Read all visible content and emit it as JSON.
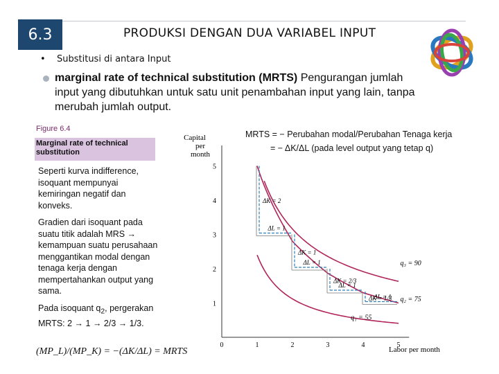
{
  "header": {
    "section_number": "6.3",
    "title": "PRODUKSI DENGAN DUA VARIABEL INPUT"
  },
  "bullets": {
    "first_marker": "•",
    "first": "Substitusi di antara Input",
    "second_bold": "marginal rate of technical substitution (MRTS)",
    "second_rest": " Pengurangan jumlah input yang dibutuhkan untuk satu unit penambahan input yang lain, tanpa merubah jumlah output."
  },
  "figure": {
    "label": "Figure 6.4",
    "caption": "Marginal rate of technical substitution"
  },
  "paragraphs": {
    "p1": "Seperti kurva indifference, isoquant mempunyai kemiringan negatif dan konveks.",
    "p2": "Gradien dari isoquant pada suatu titik adalah MRS → kemampuan suatu perusahaan menggantikan modal dengan tenaga kerja dengan mempertahankan output yang sama.",
    "p3_a": "Pada isoquant q",
    "p3_sub": "2",
    "p3_b": ", pergerakan MRTS: 2 → 1 → 2/3 → 1/3."
  },
  "formula": "(MP_L)/(MP_K) = −(ΔK/ΔL) = MRTS",
  "mrts_def": {
    "line1": "MRTS = − Perubahan modal/Perubahan Tenaga kerja",
    "line2": "= − ΔK/ΔL (pada level output yang tetap q)"
  },
  "chart_data": {
    "type": "line",
    "ylabel": "Capital per month",
    "xlabel": "Labor per month",
    "xlim": [
      0,
      5
    ],
    "ylim": [
      0,
      5
    ],
    "x_ticks": [
      "0",
      "1",
      "2",
      "3",
      "4",
      "5"
    ],
    "y_ticks": [
      "1",
      "2",
      "3",
      "4",
      "5"
    ],
    "series": [
      {
        "name": "q1 = 55",
        "points": [
          [
            1.0,
            2.4
          ],
          [
            1.5,
            1.6
          ],
          [
            2.0,
            1.2
          ],
          [
            3.0,
            0.8
          ],
          [
            4.0,
            0.6
          ],
          [
            5.0,
            0.48
          ]
        ]
      },
      {
        "name": "q2 = 75",
        "points": [
          [
            0.55,
            4.9
          ],
          [
            1.0,
            5.0
          ],
          [
            1.0,
            4.8
          ]
        ]
      },
      {
        "name": "q3 = 90",
        "points": [
          [
            1.0,
            5.0
          ],
          [
            2.0,
            3.0
          ],
          [
            3.0,
            2.0
          ],
          [
            4.0,
            1.667
          ],
          [
            5.0,
            1.333
          ]
        ]
      }
    ],
    "isoquant_q2": {
      "name": "q2 = 75",
      "points": [
        [
          1,
          5
        ],
        [
          2,
          3
        ],
        [
          3,
          2
        ],
        [
          4,
          1.333
        ],
        [
          5,
          1.0
        ]
      ]
    },
    "steps": [
      {
        "dK": "ΔK = 2",
        "dL": "ΔL = 1"
      },
      {
        "dK": "ΔK = 1",
        "dL": "ΔL = 1"
      },
      {
        "dK": "ΔK = 2/3",
        "dL": "ΔL = 1"
      },
      {
        "dK": "ΔK = 1/3",
        "dL": "ΔL = 1"
      }
    ],
    "curve_labels": {
      "q1": "q₁ = 55",
      "q2": "q₂ = 75",
      "q3": "q₃ = 90"
    },
    "colors": {
      "curve": "#b0245a",
      "dashed": "#2d7fb8",
      "step": "#777777"
    }
  }
}
